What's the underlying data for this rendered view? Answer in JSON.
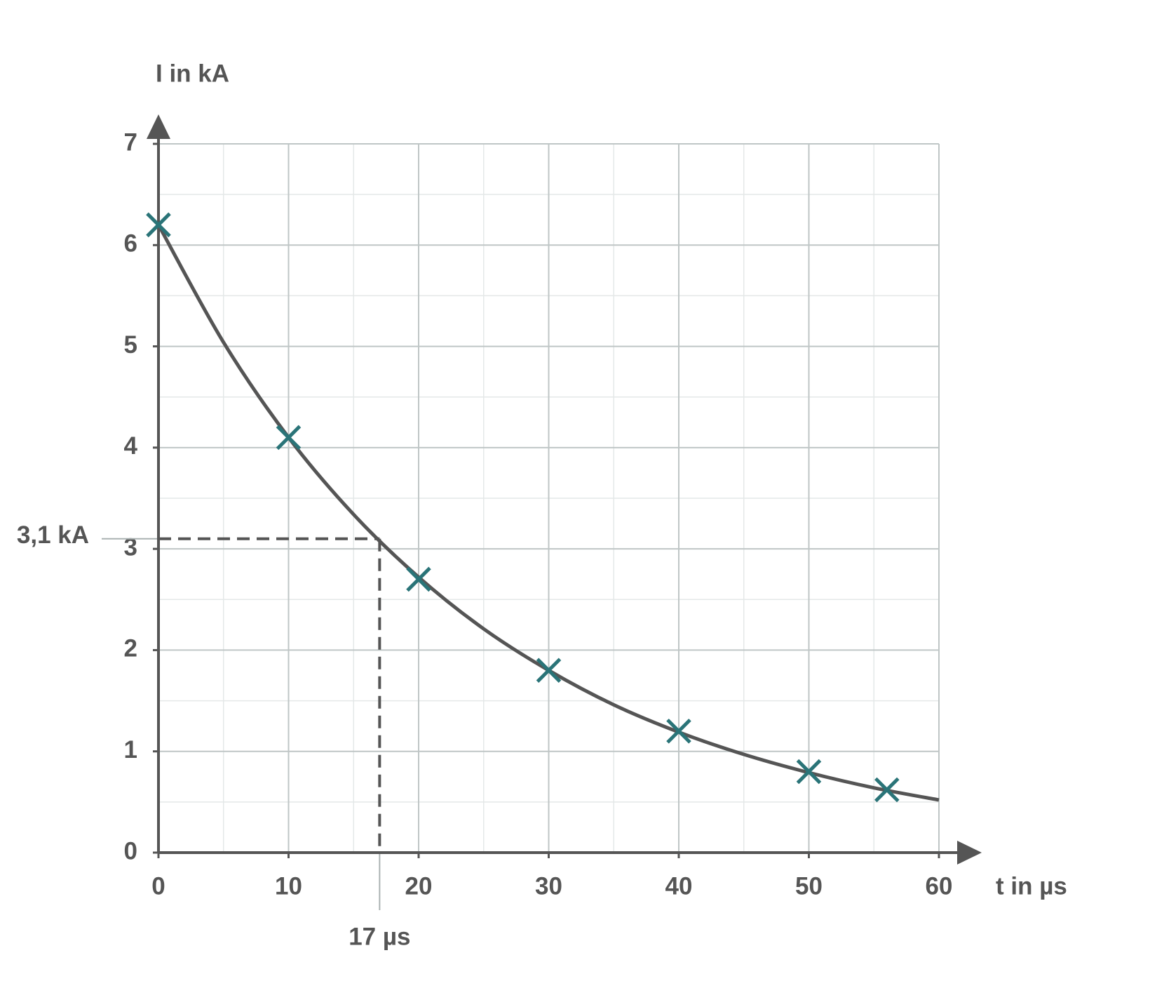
{
  "chart_data": {
    "type": "scatter",
    "y_axis_label": "I in kA",
    "x_axis_label": "t in µs",
    "xlim": [
      0,
      60
    ],
    "ylim": [
      0,
      7
    ],
    "xticks": [
      0,
      10,
      20,
      30,
      40,
      50,
      60
    ],
    "yticks": [
      0,
      1,
      2,
      3,
      4,
      5,
      6,
      7
    ],
    "grid": true,
    "minor_grid": true,
    "series": [
      {
        "type": "scatter",
        "color": "#2a7478",
        "x": [
          0,
          10,
          20,
          30,
          40,
          50,
          56
        ],
        "values": [
          6.2,
          4.1,
          2.7,
          1.8,
          1.2,
          0.8,
          0.62
        ]
      },
      {
        "type": "line",
        "color": "#555555",
        "x": [
          0,
          5,
          10,
          15,
          20,
          25,
          30,
          35,
          40,
          45,
          50,
          55,
          60
        ],
        "values": [
          6.2,
          5.04,
          4.1,
          3.34,
          2.72,
          2.21,
          1.8,
          1.46,
          1.19,
          0.97,
          0.79,
          0.64,
          0.52
        ]
      }
    ],
    "reading": {
      "x": {
        "value": 17,
        "label": "17 µs"
      },
      "y": {
        "value": 3.1,
        "label": "3,1 kA"
      }
    }
  }
}
